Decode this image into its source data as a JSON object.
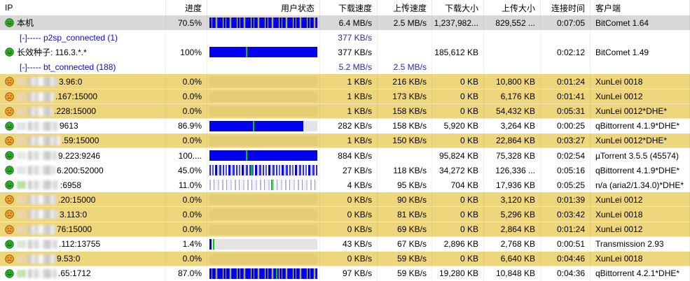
{
  "columns": [
    {
      "key": "ip",
      "label": "IP"
    },
    {
      "key": "progress",
      "label": "进度"
    },
    {
      "key": "status",
      "label": "用户状态"
    },
    {
      "key": "dl_speed",
      "label": "下载速度"
    },
    {
      "key": "ul_speed",
      "label": "上传速度"
    },
    {
      "key": "dl_size",
      "label": "下载大小"
    },
    {
      "key": "ul_size",
      "label": "上传大小"
    },
    {
      "key": "time",
      "label": "连接时间"
    },
    {
      "key": "client",
      "label": "客户端"
    }
  ],
  "sort": {
    "column_label": "上传速度",
    "direction": "desc"
  },
  "colors": {
    "row_yellow": "#eed67c",
    "row_selected": "#d8d8d8",
    "bar_blue": "#0202ee",
    "bar_empty": "#e4e4e4",
    "marker_green": "#00cc00",
    "link_blue": "#0909e8",
    "speed_blue": "#2525cc",
    "icon_happy_green": "#2db32d",
    "icon_sad_orange": "#f2a32c"
  },
  "rows": [
    {
      "type": "peer",
      "selected": true,
      "icon": "happy",
      "name": "本机",
      "progress": "70.5%",
      "bar": {
        "kind": "striped",
        "density": "dense",
        "fill_pct": 100
      },
      "dl_speed": "6.4 MB/s",
      "ul_speed": "2.5 MB/s",
      "dl_size": "1,237,982...",
      "ul_size": "829,552 ...",
      "time": "0:07:05",
      "client": "BitComet 1.64"
    },
    {
      "type": "group",
      "label": "[-]----- p2sp_connected (1)",
      "dl_speed": "377 KB/s",
      "ul_speed": ""
    },
    {
      "type": "peer",
      "icon": "happy",
      "name": "长效种子: 116.3.*.*",
      "progress": "100%",
      "bar": {
        "kind": "solid",
        "fill_pct": 100,
        "marker_pct": 34
      },
      "dl_speed": "377 KB/s",
      "ul_speed": "",
      "dl_size": "185,612 KB",
      "ul_size": "",
      "time": "0:02:12",
      "client": "BitComet 1.49"
    },
    {
      "type": "group",
      "label": "[-]----- bt_connected (188)",
      "dl_speed": "5.2 MB/s",
      "ul_speed": "2.5 MB/s"
    },
    {
      "type": "peer",
      "icon": "sad",
      "highlight": true,
      "flag": "#e9d5ae",
      "blur_w": 42,
      "ip_suffix": "3.96:0",
      "progress": "0.0%",
      "bar": {
        "kind": "none"
      },
      "dl_speed": "1 KB/s",
      "ul_speed": "216 KB/s",
      "dl_size": "0 KB",
      "ul_size": "10,800 KB",
      "time": "0:01:24",
      "client": "XunLei 0018"
    },
    {
      "type": "peer",
      "icon": "sad",
      "highlight": true,
      "flag": "#e9d5ae",
      "blur_w": 37,
      "ip_suffix": ".167:15000",
      "progress": "0.0%",
      "bar": {
        "kind": "none"
      },
      "dl_speed": "1 KB/s",
      "ul_speed": "173 KB/s",
      "dl_size": "0 KB",
      "ul_size": "6,176 KB",
      "time": "0:01:41",
      "client": "XunLei 0012"
    },
    {
      "type": "peer",
      "icon": "sad",
      "highlight": true,
      "flag": "#e9d5ae",
      "blur_w": 35,
      "ip_suffix": ".228:15000",
      "progress": "0.0%",
      "bar": {
        "kind": "none"
      },
      "dl_speed": "1 KB/s",
      "ul_speed": "158 KB/s",
      "dl_size": "0 KB",
      "ul_size": "54,432 KB",
      "time": "0:05:31",
      "client": "XunLei 0012*DHE*"
    },
    {
      "type": "peer",
      "icon": "happy",
      "flag": "#e2e2e2",
      "blur_w": 43,
      "ip_suffix": "9613",
      "progress": "86.9%",
      "bar": {
        "kind": "solid",
        "fill_pct": 87,
        "marker_pct": 40
      },
      "dl_speed": "282 KB/s",
      "ul_speed": "158 KB/s",
      "dl_size": "5,920 KB",
      "ul_size": "3,264 KB",
      "time": "0:00:25",
      "client": "qBittorrent 4.1.9*DHE*"
    },
    {
      "type": "peer",
      "icon": "sad",
      "highlight": true,
      "flag": "#e9d5ae",
      "blur_w": 46,
      "ip_suffix": ".59:15000",
      "progress": "0.0%",
      "bar": {
        "kind": "none"
      },
      "dl_speed": "1 KB/s",
      "ul_speed": "150 KB/s",
      "dl_size": "0 KB",
      "ul_size": "22,864 KB",
      "time": "0:03:27",
      "client": "XunLei 0012*DHE*"
    },
    {
      "type": "peer",
      "icon": "happy",
      "flag": "#e6ede6",
      "blur_w": 41,
      "ip_suffix": "9.223:9246",
      "progress": "100....",
      "bar": {
        "kind": "solid",
        "fill_pct": 100,
        "marker_pct": 34
      },
      "dl_speed": "884 KB/s",
      "ul_speed": "",
      "dl_size": "95,824 KB",
      "ul_size": "75,328 KB",
      "time": "0:02:54",
      "client": "µTorrent 3.5.5 (45574)"
    },
    {
      "type": "peer",
      "icon": "happy",
      "flag": "#dfe7ee",
      "blur_w": 39,
      "ip_suffix": "6.200:52000",
      "progress": "45.0%",
      "bar": {
        "kind": "striped",
        "density": "medium",
        "fill_pct": 100,
        "marker_pct": 38
      },
      "dl_speed": "27 KB/s",
      "ul_speed": "118 KB/s",
      "dl_size": "34,272 KB",
      "ul_size": "126,336 ...",
      "time": "0:05:16",
      "client": "qBittorrent 4.1.9*DHE*"
    },
    {
      "type": "peer",
      "icon": "happy",
      "flag": "#b9e0a6",
      "blur_w": 44,
      "ip_suffix": ":6958",
      "progress": "11.0%",
      "bar": {
        "kind": "striped",
        "density": "light",
        "fill_pct": 100,
        "marker_pct": 57
      },
      "dl_speed": "4 KB/s",
      "ul_speed": "95 KB/s",
      "dl_size": "704 KB",
      "ul_size": "17,936 KB",
      "time": "0:05:25",
      "client": "n/a (aria2/1.34.0)*DHE*"
    },
    {
      "type": "peer",
      "icon": "sad",
      "highlight": true,
      "flag": "#e9d5ae",
      "blur_w": 41,
      "ip_suffix": ".20:15000",
      "progress": "0.0%",
      "bar": {
        "kind": "none"
      },
      "dl_speed": "0 KB/s",
      "ul_speed": "90 KB/s",
      "dl_size": "0 KB",
      "ul_size": "3,120 KB",
      "time": "0:01:39",
      "client": "XunLei 0012"
    },
    {
      "type": "peer",
      "icon": "sad",
      "highlight": true,
      "flag": "#e9d5ae",
      "blur_w": 43,
      "ip_suffix": "3.113:0",
      "progress": "0.0%",
      "bar": {
        "kind": "none"
      },
      "dl_speed": "0 KB/s",
      "ul_speed": "81 KB/s",
      "dl_size": "0 KB",
      "ul_size": "5,296 KB",
      "time": "0:03:42",
      "client": "XunLei 0018"
    },
    {
      "type": "peer",
      "icon": "sad",
      "highlight": true,
      "flag": "#e9d5ae",
      "blur_w": 39,
      "ip_suffix": "76:15000",
      "progress": "0.0%",
      "bar": {
        "kind": "none"
      },
      "dl_speed": "0 KB/s",
      "ul_speed": "69 KB/s",
      "dl_size": "0 KB",
      "ul_size": "2,864 KB",
      "time": "0:01:24",
      "client": "XunLei 0012"
    },
    {
      "type": "peer",
      "icon": "happy",
      "flag": "#dce6dc",
      "blur_w": 42,
      "ip_suffix": ".112:13755",
      "progress": "1.4%",
      "bar": {
        "kind": "empty",
        "fill_pct": 2,
        "marker_pct": 3
      },
      "dl_speed": "43 KB/s",
      "ul_speed": "67 KB/s",
      "dl_size": "2,896 KB",
      "ul_size": "2,768 KB",
      "time": "0:00:51",
      "client": "Transmission 2.93"
    },
    {
      "type": "peer",
      "icon": "sad",
      "highlight": true,
      "flag": "#e9d5ae",
      "blur_w": 39,
      "ip_suffix": "9.53:0",
      "progress": "0.0%",
      "bar": {
        "kind": "none"
      },
      "dl_speed": "0 KB/s",
      "ul_speed": "59 KB/s",
      "dl_size": "0 KB",
      "ul_size": "6,640 KB",
      "time": "0:04:46",
      "client": "XunLei 0018"
    },
    {
      "type": "peer",
      "icon": "happy",
      "flag": "#bfe6b0",
      "blur_w": 41,
      "ip_suffix": ".65:1712",
      "progress": "87.0%",
      "bar": {
        "kind": "striped",
        "density": "dense",
        "fill_pct": 100,
        "marker_pct": 62
      },
      "dl_speed": "97 KB/s",
      "ul_speed": "59 KB/s",
      "dl_size": "19,280 KB",
      "ul_size": "10,848 KB",
      "time": "0:04:36",
      "client": "qBittorrent 4.2.1*DHE*"
    }
  ]
}
